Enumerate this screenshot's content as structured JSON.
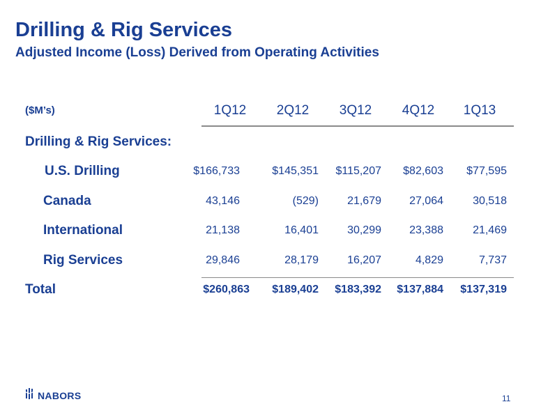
{
  "slide": {
    "title": "Drilling & Rig Services",
    "subtitle": "Adjusted Income (Loss) Derived from Operating Activities"
  },
  "table": {
    "unit_label": "($M’s)",
    "columns": [
      "1Q12",
      "2Q12",
      "3Q12",
      "4Q12",
      "1Q13"
    ],
    "section_label": "Drilling & Rig Services:",
    "rows": [
      {
        "label": "U.S. Drilling",
        "values": [
          "$166,733",
          "$145,351",
          "$115,207",
          "$82,603",
          "$77,595"
        ]
      },
      {
        "label": "Canada",
        "values": [
          "43,146",
          "(529)",
          "21,679",
          "27,064",
          "30,518"
        ]
      },
      {
        "label": "International",
        "values": [
          "21,138",
          "16,401",
          "30,299",
          "23,388",
          "21,469"
        ]
      },
      {
        "label": "Rig Services",
        "values": [
          "29,846",
          "28,179",
          "16,207",
          "4,829",
          "7,737"
        ]
      }
    ],
    "total": {
      "label": "Total",
      "values": [
        "$260,863",
        "$189,402",
        "$183,392",
        "$137,884",
        "$137,319"
      ]
    }
  },
  "footer": {
    "logo_text": "NABORS",
    "logo_icon": "nabors-logo-icon",
    "page_number": "11"
  },
  "colors": {
    "brand_blue": "#1a3f93",
    "rule_gray": "#8a8a8a"
  }
}
